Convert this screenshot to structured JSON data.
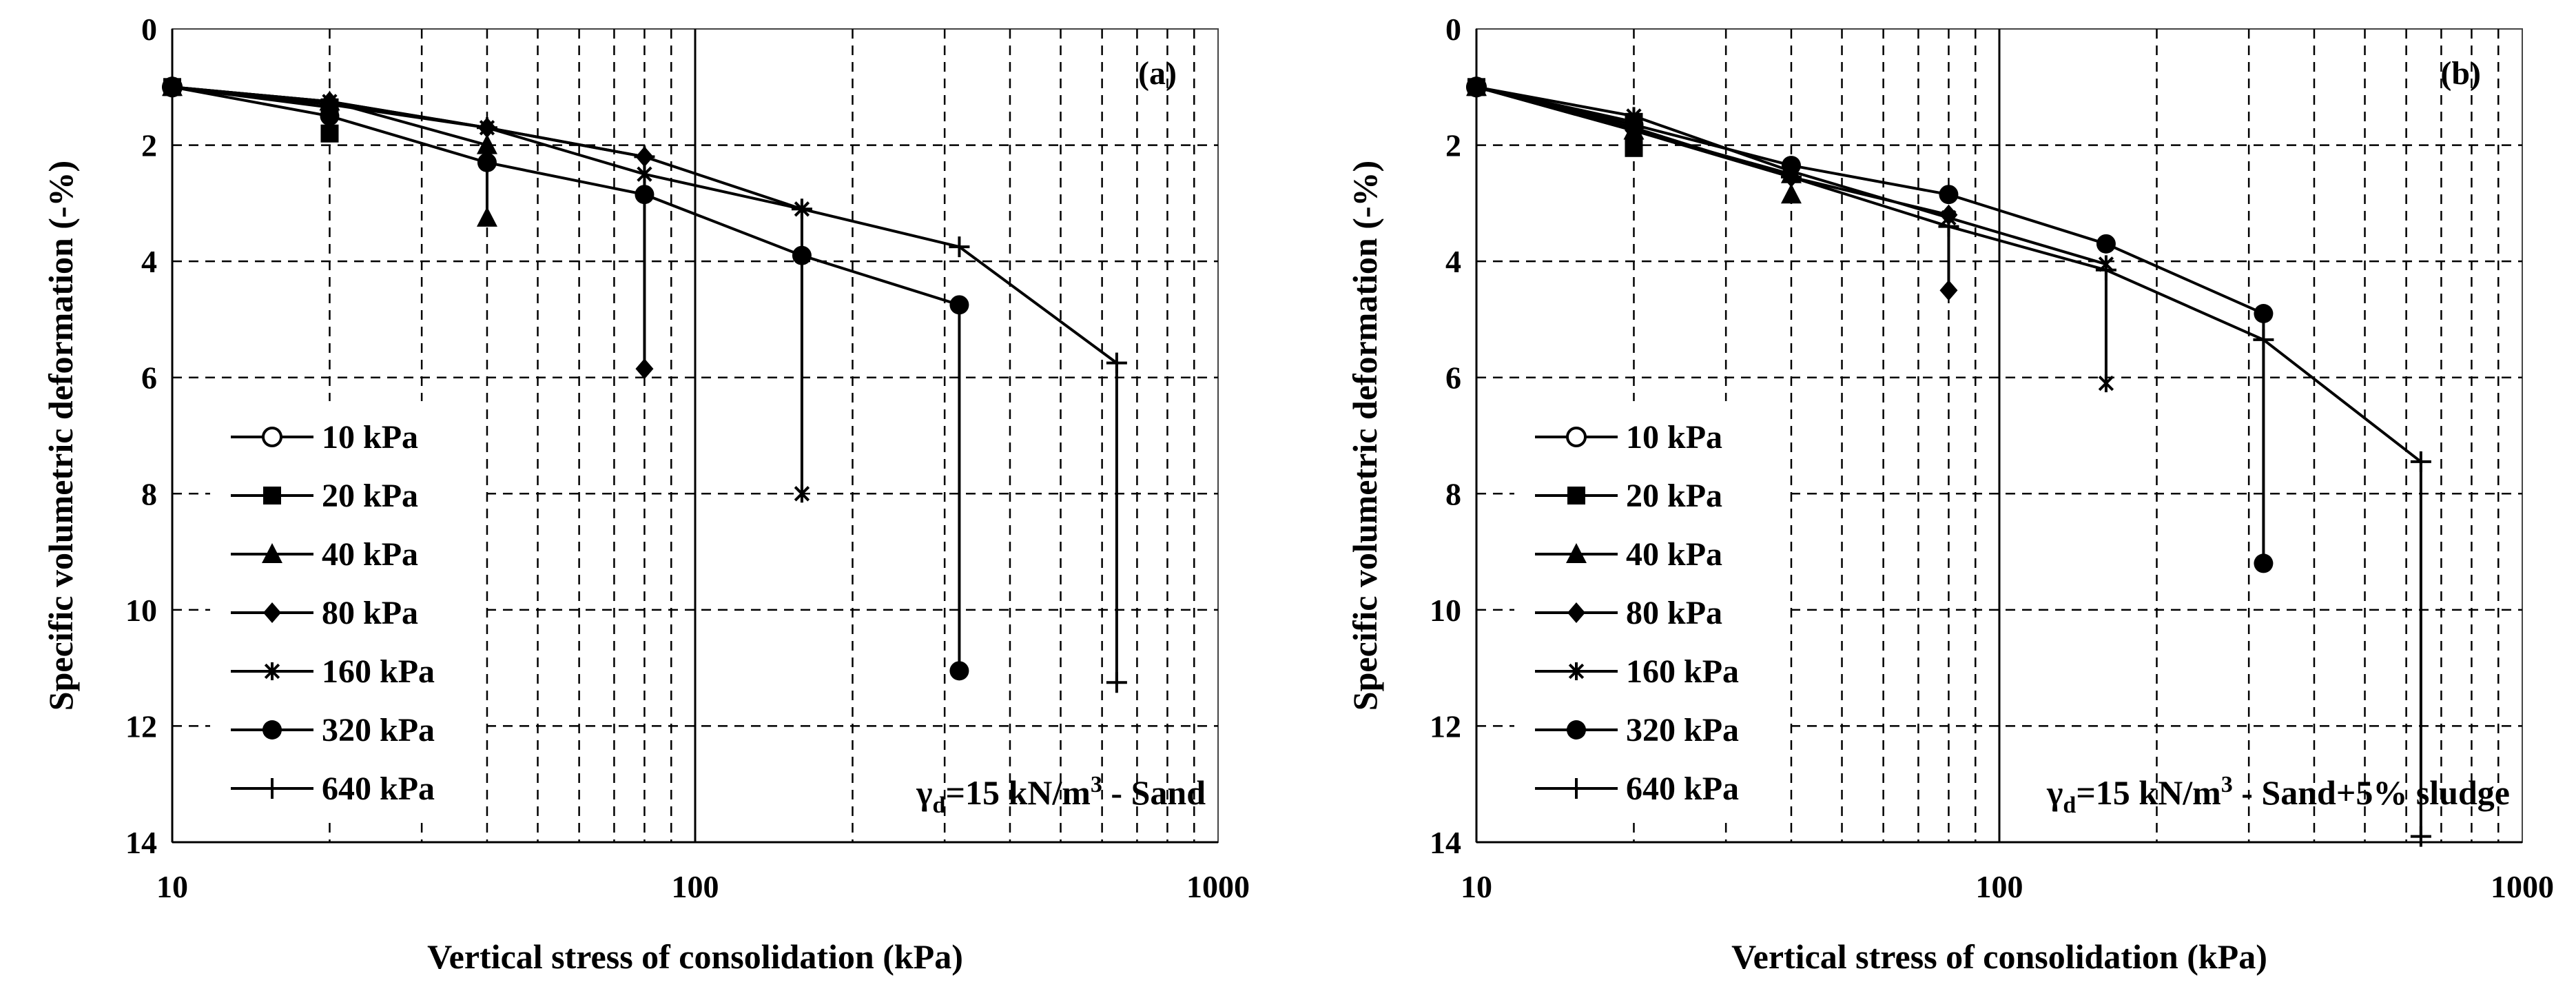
{
  "figure": {
    "background": "#ffffff",
    "ink": "#000000"
  },
  "chart_data": [
    {
      "type": "line",
      "panel_label": "(a)",
      "annotation": {
        "prefix": "γ",
        "sub": "d",
        "mid": "=15 kN/m",
        "sup": "3",
        "suffix": " - Sand"
      },
      "xlabel": "Vertical stress of consolidation (kPa)",
      "ylabel": "Specific volumetric deformation (-%)",
      "x_scale": "log",
      "xlim": [
        10,
        1000
      ],
      "ylim": [
        0,
        14
      ],
      "y_inverted": true,
      "x_ticks": [
        "10",
        "100",
        "1000"
      ],
      "y_ticks": [
        "0",
        "2",
        "4",
        "6",
        "8",
        "10",
        "12",
        "14"
      ],
      "grid": "dashed",
      "legend_placement": "bottom-left",
      "series": [
        {
          "name": "10 kPa",
          "marker": "open-circle",
          "points": [
            [
              10,
              1.0
            ]
          ]
        },
        {
          "name": "20 kPa",
          "marker": "square",
          "points": [
            [
              10,
              1.0
            ],
            [
              20,
              1.35
            ],
            [
              20,
              1.8
            ]
          ]
        },
        {
          "name": "40 kPa",
          "marker": "triangle",
          "points": [
            [
              10,
              1.0
            ],
            [
              20,
              1.25
            ],
            [
              40,
              2.0
            ],
            [
              40,
              3.25
            ]
          ]
        },
        {
          "name": "80 kPa",
          "marker": "diamond",
          "points": [
            [
              10,
              1.0
            ],
            [
              20,
              1.25
            ],
            [
              40,
              1.7
            ],
            [
              80,
              2.2
            ],
            [
              80,
              5.85
            ]
          ]
        },
        {
          "name": "160 kPa",
          "marker": "star",
          "points": [
            [
              10,
              1.0
            ],
            [
              20,
              1.25
            ],
            [
              40,
              1.7
            ],
            [
              80,
              2.5
            ],
            [
              160,
              3.1
            ],
            [
              160,
              8.0
            ]
          ]
        },
        {
          "name": "320 kPa",
          "marker": "circle",
          "points": [
            [
              10,
              1.0
            ],
            [
              20,
              1.5
            ],
            [
              40,
              2.3
            ],
            [
              80,
              2.85
            ],
            [
              160,
              3.9
            ],
            [
              320,
              4.75
            ],
            [
              320,
              11.05
            ]
          ]
        },
        {
          "name": "640 kPa",
          "marker": "plus",
          "points": [
            [
              10,
              1.0
            ],
            [
              20,
              1.3
            ],
            [
              40,
              1.7
            ],
            [
              80,
              2.2
            ],
            [
              160,
              3.1
            ],
            [
              320,
              3.75
            ],
            [
              640,
              5.75
            ],
            [
              640,
              11.25
            ]
          ]
        }
      ]
    },
    {
      "type": "line",
      "panel_label": "(b)",
      "annotation": {
        "prefix": "γ",
        "sub": "d",
        "mid": "=15 kN/m",
        "sup": "3",
        "suffix": " - Sand+5% sludge"
      },
      "xlabel": "Vertical stress of consolidation (kPa)",
      "ylabel": "Specific volumetric deformation (-%)",
      "x_scale": "log",
      "xlim": [
        10,
        1000
      ],
      "ylim": [
        0,
        14
      ],
      "y_inverted": true,
      "x_ticks": [
        "10",
        "100",
        "1000"
      ],
      "y_ticks": [
        "0",
        "2",
        "4",
        "6",
        "8",
        "10",
        "12",
        "14"
      ],
      "grid": "dashed",
      "legend_placement": "bottom-left",
      "series": [
        {
          "name": "10 kPa",
          "marker": "open-circle",
          "points": [
            [
              10,
              1.0
            ]
          ]
        },
        {
          "name": "20 kPa",
          "marker": "square",
          "points": [
            [
              10,
              1.0
            ],
            [
              20,
              1.6
            ],
            [
              20,
              2.05
            ]
          ]
        },
        {
          "name": "40 kPa",
          "marker": "triangle",
          "points": [
            [
              10,
              1.0
            ],
            [
              20,
              1.75
            ],
            [
              40,
              2.5
            ],
            [
              40,
              2.85
            ]
          ]
        },
        {
          "name": "80 kPa",
          "marker": "diamond",
          "points": [
            [
              10,
              1.0
            ],
            [
              20,
              1.75
            ],
            [
              40,
              2.55
            ],
            [
              80,
              3.2
            ],
            [
              80,
              4.5
            ]
          ]
        },
        {
          "name": "160 kPa",
          "marker": "star",
          "points": [
            [
              10,
              1.0
            ],
            [
              20,
              1.5
            ],
            [
              40,
              2.45
            ],
            [
              80,
              3.25
            ],
            [
              160,
              4.05
            ],
            [
              160,
              6.1
            ]
          ]
        },
        {
          "name": "320 kPa",
          "marker": "circle",
          "points": [
            [
              10,
              1.0
            ],
            [
              20,
              1.65
            ],
            [
              40,
              2.35
            ],
            [
              80,
              2.85
            ],
            [
              160,
              3.7
            ],
            [
              320,
              4.9
            ],
            [
              320,
              9.2
            ]
          ]
        },
        {
          "name": "640 kPa",
          "marker": "plus",
          "points": [
            [
              10,
              1.0
            ],
            [
              20,
              1.7
            ],
            [
              40,
              2.55
            ],
            [
              80,
              3.4
            ],
            [
              160,
              4.15
            ],
            [
              320,
              5.35
            ],
            [
              640,
              7.45
            ],
            [
              640,
              13.9
            ]
          ]
        }
      ]
    }
  ]
}
